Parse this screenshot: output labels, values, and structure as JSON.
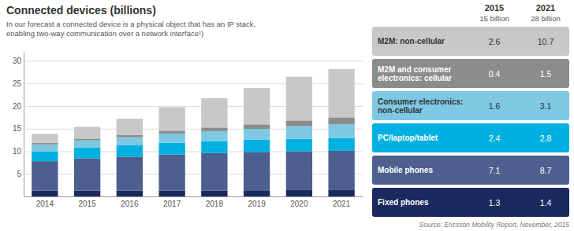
{
  "chart_data": {
    "type": "bar",
    "stacked": true,
    "title": "Connected devices (billions)",
    "subtitle": [
      "In our forecast a connected device is a physical object that has an IP stack,",
      "enabling two-way communication over a network interface¹)"
    ],
    "source": "Source: Ericsson Mobility Report, November, 2015",
    "categories": [
      "2014",
      "2015",
      "2016",
      "2017",
      "2018",
      "2019",
      "2020",
      "2021"
    ],
    "series": [
      {
        "name": "Fixed phones",
        "color": "#1b2a5e",
        "values": [
          1.3,
          1.3,
          1.3,
          1.3,
          1.3,
          1.35,
          1.4,
          1.4
        ],
        "legend_values": [
          1.3,
          1.4
        ]
      },
      {
        "name": "Mobile phones",
        "color": "#4d5f8e",
        "values": [
          6.5,
          7.1,
          7.5,
          8.0,
          8.3,
          8.5,
          8.6,
          8.7
        ],
        "legend_values": [
          7.1,
          8.7
        ]
      },
      {
        "name": "PC/laptop/tablet",
        "color": "#00b0e0",
        "values": [
          2.2,
          2.4,
          2.5,
          2.6,
          2.65,
          2.7,
          2.75,
          2.8
        ],
        "legend_values": [
          2.4,
          2.8
        ]
      },
      {
        "name": "Consumer electronics: non-cellular",
        "color": "#7ec8e3",
        "values": [
          1.5,
          1.6,
          1.8,
          2.0,
          2.2,
          2.4,
          2.8,
          3.1
        ],
        "legend_values": [
          1.6,
          3.1
        ]
      },
      {
        "name": "M2M and consumer electronics: cellular",
        "color": "#8c8c8c",
        "values": [
          0.35,
          0.4,
          0.5,
          0.65,
          0.8,
          1.0,
          1.25,
          1.5
        ],
        "legend_values": [
          0.4,
          1.5
        ]
      },
      {
        "name": "M2M: non-cellular",
        "color": "#c8c8c8",
        "values": [
          2.0,
          2.6,
          3.6,
          5.2,
          6.5,
          8.05,
          9.7,
          10.7
        ],
        "legend_values": [
          2.6,
          10.7
        ]
      }
    ],
    "legend_table": {
      "columns": [
        "2015",
        "2021"
      ],
      "column_notes": [
        "15 billion",
        "28 billion"
      ]
    },
    "ylim": [
      0,
      32
    ],
    "yticks": [
      5,
      10,
      15,
      20,
      25,
      30
    ],
    "grid": true
  }
}
